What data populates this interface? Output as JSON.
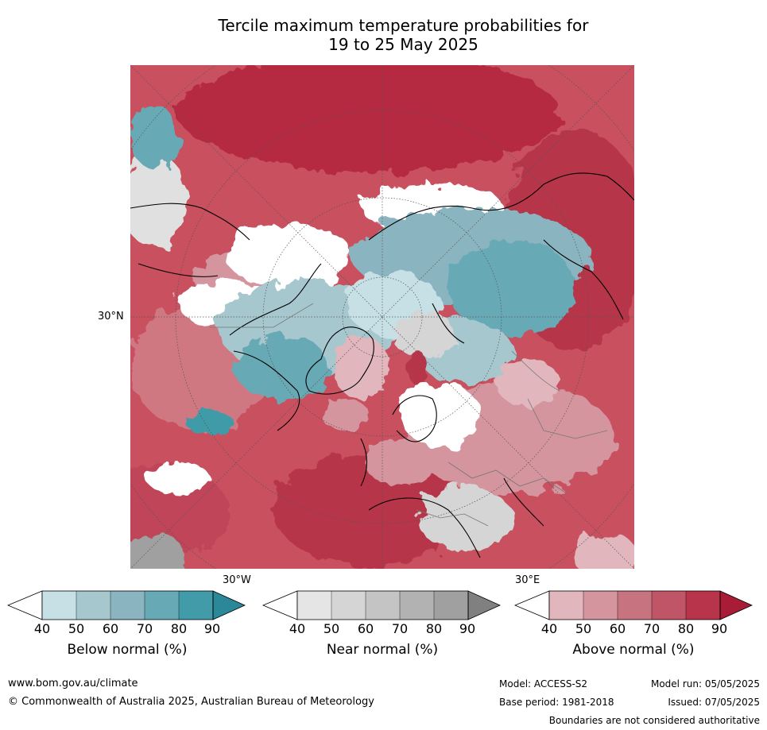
{
  "title": {
    "line1": "Tercile maximum temperature probabilities for",
    "line2": "19 to 25 May 2025"
  },
  "map": {
    "lat_label": "30°N",
    "lon_labels": {
      "west": "30°W",
      "east": "30°E"
    }
  },
  "colorbars": [
    {
      "name": "below",
      "label": "Below normal (%)",
      "ticks": [
        "40",
        "50",
        "60",
        "70",
        "80",
        "90"
      ],
      "colors": [
        "#ffffff",
        "#c6e0e6",
        "#a6c7cd",
        "#8ab4bf",
        "#68a9b6",
        "#419ba9",
        "#2a8898"
      ]
    },
    {
      "name": "near",
      "label": "Near normal (%)",
      "ticks": [
        "40",
        "50",
        "60",
        "70",
        "80",
        "90"
      ],
      "colors": [
        "#ffffff",
        "#e5e5e5",
        "#d5d5d5",
        "#c4c4c4",
        "#b2b2b2",
        "#a0a0a0",
        "#808080"
      ]
    },
    {
      "name": "above",
      "label": "Above normal (%)",
      "ticks": [
        "40",
        "50",
        "60",
        "70",
        "80",
        "90"
      ],
      "colors": [
        "#ffffff",
        "#e1b6bd",
        "#d4959e",
        "#c87480",
        "#bf5566",
        "#b7344a",
        "#a81c36"
      ]
    }
  ],
  "footer": {
    "website": "www.bom.gov.au/climate",
    "copyright": "© Commonwealth of Australia 2025, Australian Bureau of Meteorology",
    "model": "Model: ACCESS-S2",
    "base_period": "Base period: 1981-2018",
    "model_run": "Model run: 05/05/2025",
    "issued": "Issued: 07/05/2025",
    "disclaimer": "Boundaries are not considered authoritative"
  }
}
